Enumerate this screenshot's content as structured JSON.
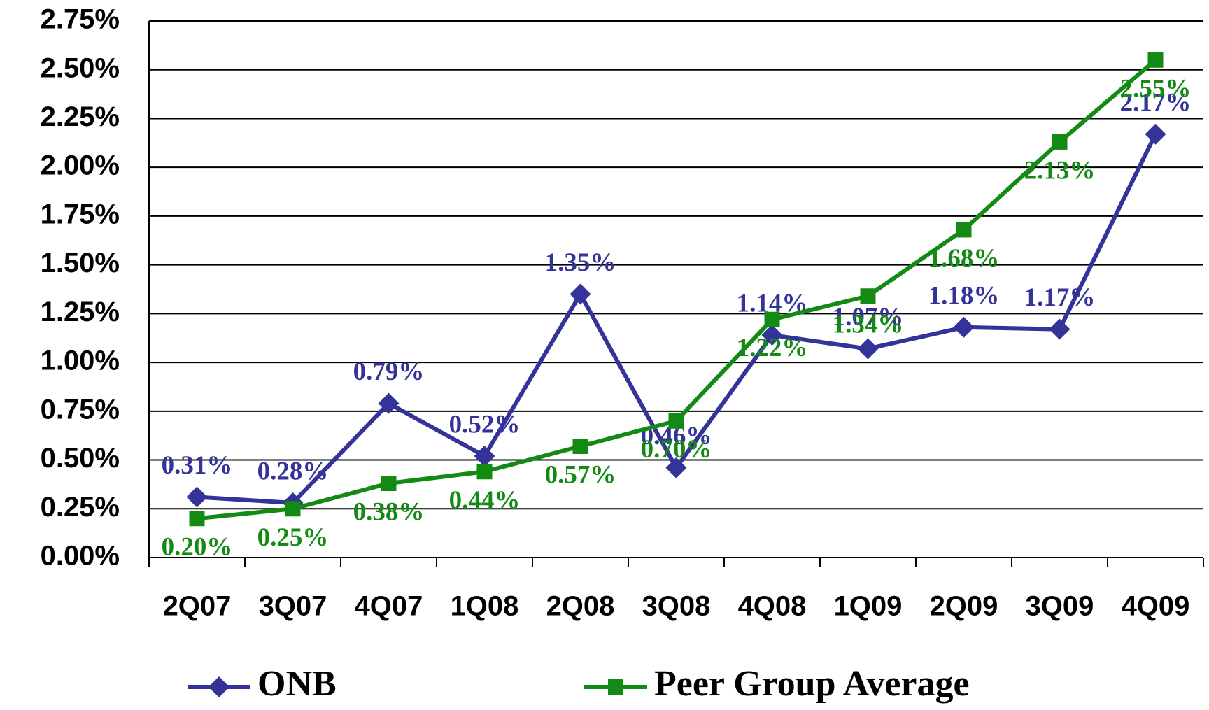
{
  "chart_data": {
    "type": "line",
    "categories": [
      "2Q07",
      "3Q07",
      "4Q07",
      "1Q08",
      "2Q08",
      "3Q08",
      "4Q08",
      "1Q09",
      "2Q09",
      "3Q09",
      "4Q09"
    ],
    "series": [
      {
        "name": "ONB",
        "color": "#33339a",
        "marker": "diamond",
        "values": [
          0.31,
          0.28,
          0.79,
          0.52,
          1.35,
          0.46,
          1.14,
          1.07,
          1.18,
          1.17,
          2.17
        ],
        "value_labels": [
          "0.31%",
          "0.28%",
          "0.79%",
          "0.52%",
          "1.35%",
          "0.46%",
          "1.14%",
          "1.07%",
          "1.18%",
          "1.17%",
          "2.17%"
        ]
      },
      {
        "name": "Peer Group Average",
        "color": "#138a13",
        "marker": "square",
        "values": [
          0.2,
          0.25,
          0.38,
          0.44,
          0.57,
          0.7,
          1.22,
          1.34,
          1.68,
          2.13,
          2.55
        ],
        "value_labels": [
          "0.20%",
          "0.25%",
          "0.38%",
          "0.44%",
          "0.57%",
          "0.70%",
          "1.22%",
          "1.34%",
          "1.68%",
          "2.13%",
          "2.55%"
        ]
      }
    ],
    "ylim": [
      0,
      2.75
    ],
    "yticks": [
      {
        "value": 0,
        "label": "0.00%"
      },
      {
        "value": 0.25,
        "label": "0.25%"
      },
      {
        "value": 0.5,
        "label": "0.50%"
      },
      {
        "value": 0.75,
        "label": "0.75%"
      },
      {
        "value": 1,
        "label": "1.00%"
      },
      {
        "value": 1.25,
        "label": "1.25%"
      },
      {
        "value": 1.5,
        "label": "1.50%"
      },
      {
        "value": 1.75,
        "label": "1.75%"
      },
      {
        "value": 2,
        "label": "2.00%"
      },
      {
        "value": 2.25,
        "label": "2.25%"
      },
      {
        "value": 2.5,
        "label": "2.50%"
      },
      {
        "value": 2.75,
        "label": "2.75%"
      }
    ],
    "grid": true,
    "legend": "bottom"
  }
}
